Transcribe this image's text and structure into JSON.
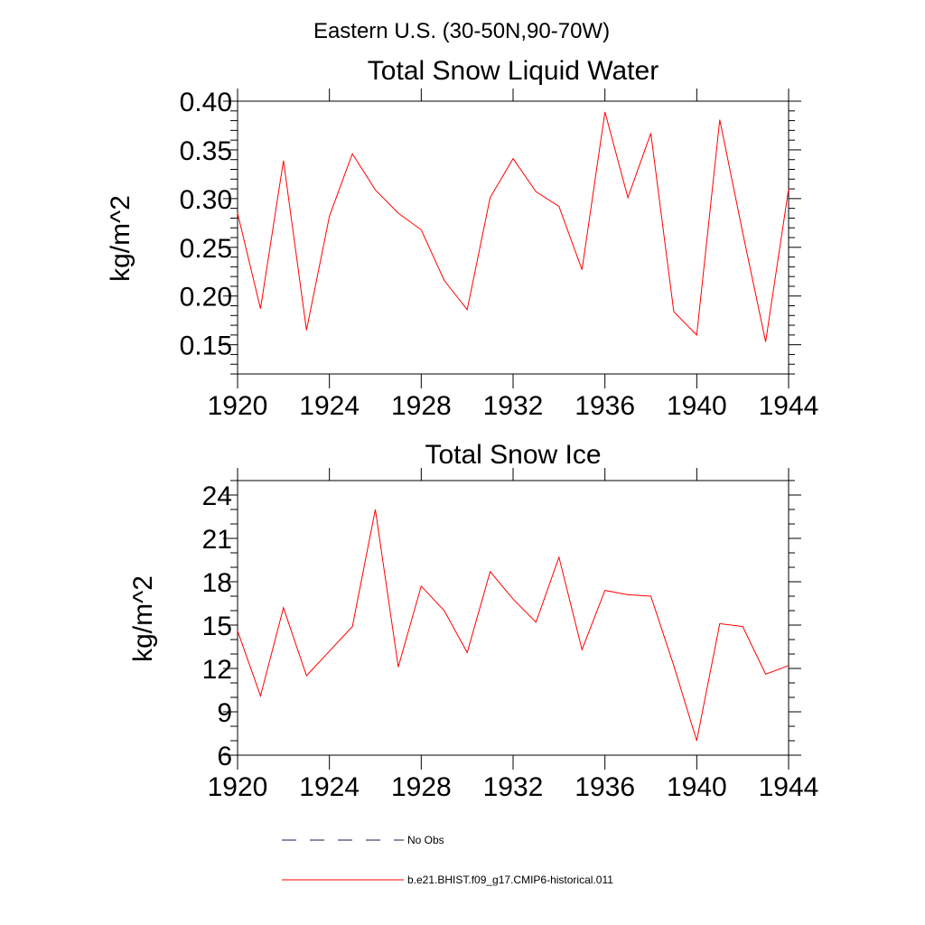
{
  "figure_title": "Eastern U.S. (30-50N,90-70W)",
  "chart_data": [
    {
      "type": "line",
      "title": "Total Snow Liquid Water",
      "xlabel": "",
      "ylabel": "kg/m^2",
      "xlim": [
        1920,
        1944
      ],
      "ylim": [
        0.12,
        0.4
      ],
      "x_ticks": [
        1920,
        1924,
        1928,
        1932,
        1936,
        1940,
        1944
      ],
      "x_tick_labels": [
        "1920",
        "1924",
        "1928",
        "1932",
        "1936",
        "1940",
        "1944"
      ],
      "y_ticks": [
        0.15,
        0.2,
        0.25,
        0.3,
        0.35,
        0.4
      ],
      "y_tick_labels": [
        "0.15",
        "0.20",
        "0.25",
        "0.30",
        "0.35",
        "0.40"
      ],
      "grid": false,
      "series": [
        {
          "name": "b.e21.BHIST.f09_g17.CMIP6-historical.011",
          "color": "#ff0000",
          "x": [
            1920,
            1921,
            1922,
            1923,
            1924,
            1925,
            1926,
            1927,
            1928,
            1929,
            1930,
            1931,
            1932,
            1933,
            1934,
            1935,
            1936,
            1937,
            1938,
            1939,
            1940,
            1941,
            1942,
            1943,
            1944
          ],
          "y": [
            0.285,
            0.187,
            0.339,
            0.165,
            0.282,
            0.346,
            0.309,
            0.285,
            0.268,
            0.216,
            0.186,
            0.301,
            0.341,
            0.307,
            0.292,
            0.227,
            0.389,
            0.301,
            0.367,
            0.184,
            0.16,
            0.381,
            0.265,
            0.153,
            0.31
          ]
        }
      ]
    },
    {
      "type": "line",
      "title": "Total Snow Ice",
      "xlabel": "",
      "ylabel": "kg/m^2",
      "xlim": [
        1920,
        1944
      ],
      "ylim": [
        6,
        25
      ],
      "x_ticks": [
        1920,
        1924,
        1928,
        1932,
        1936,
        1940,
        1944
      ],
      "x_tick_labels": [
        "1920",
        "1924",
        "1928",
        "1932",
        "1936",
        "1940",
        "1944"
      ],
      "y_ticks": [
        6,
        9,
        12,
        15,
        18,
        21,
        24
      ],
      "y_tick_labels": [
        "6",
        "9",
        "12",
        "15",
        "18",
        "21",
        "24"
      ],
      "grid": false,
      "series": [
        {
          "name": "b.e21.BHIST.f09_g17.CMIP6-historical.011",
          "color": "#ff0000",
          "x": [
            1920,
            1921,
            1922,
            1923,
            1924,
            1925,
            1926,
            1927,
            1928,
            1929,
            1930,
            1931,
            1932,
            1933,
            1934,
            1935,
            1936,
            1937,
            1938,
            1939,
            1940,
            1941,
            1942,
            1943,
            1944
          ],
          "y": [
            14.6,
            10.1,
            16.2,
            11.5,
            13.2,
            14.9,
            23.0,
            12.1,
            17.7,
            16.0,
            13.1,
            18.7,
            16.8,
            15.2,
            19.7,
            13.3,
            17.4,
            17.1,
            17.0,
            12.2,
            7.0,
            15.1,
            14.9,
            11.6,
            12.2
          ]
        }
      ]
    }
  ],
  "legend": [
    {
      "label": "No Obs",
      "style": "dashed",
      "color": "#1a1a55"
    },
    {
      "label": "b.e21.BHIST.f09_g17.CMIP6-historical.011",
      "style": "solid",
      "color": "#ff0000"
    }
  ]
}
